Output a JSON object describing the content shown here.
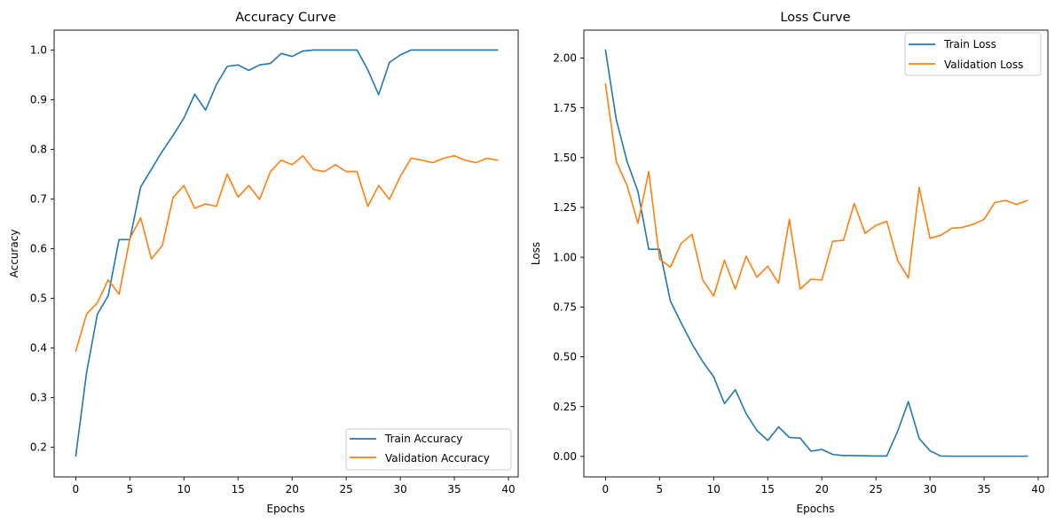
{
  "chart_data": [
    {
      "type": "line",
      "title": "Accuracy Curve",
      "xlabel": "Epochs",
      "ylabel": "Accuracy",
      "xlim": [
        -2,
        40.9
      ],
      "ylim": [
        0.14,
        1.04
      ],
      "xticks": [
        0,
        5,
        10,
        15,
        20,
        25,
        30,
        35,
        40
      ],
      "yticks": [
        0.2,
        0.3,
        0.4,
        0.5,
        0.6,
        0.7,
        0.8,
        0.9,
        1.0
      ],
      "xtick_labels": [
        "0",
        "5",
        "10",
        "15",
        "20",
        "25",
        "30",
        "35",
        "40"
      ],
      "ytick_labels": [
        "0.2",
        "0.3",
        "0.4",
        "0.5",
        "0.6",
        "0.7",
        "0.8",
        "0.9",
        "1.0"
      ],
      "grid": false,
      "legend_position": "bottom-right",
      "x": [
        0,
        1,
        2,
        3,
        4,
        5,
        6,
        7,
        8,
        9,
        10,
        11,
        12,
        13,
        14,
        15,
        16,
        17,
        18,
        19,
        20,
        21,
        22,
        23,
        24,
        25,
        26,
        27,
        28,
        29,
        30,
        31,
        32,
        33,
        34,
        35,
        36,
        37,
        38,
        39
      ],
      "series": [
        {
          "name": "Train Accuracy",
          "color": "#1f77b4",
          "values": [
            0.182,
            0.35,
            0.468,
            0.505,
            0.618,
            0.618,
            0.724,
            0.76,
            0.796,
            0.828,
            0.863,
            0.911,
            0.879,
            0.93,
            0.967,
            0.97,
            0.959,
            0.97,
            0.973,
            0.993,
            0.987,
            0.998,
            1.0,
            1.0,
            1.0,
            1.0,
            1.0,
            0.96,
            0.91,
            0.975,
            0.99,
            1.0,
            1.0,
            1.0,
            1.0,
            1.0,
            1.0,
            1.0,
            1.0,
            1.0
          ]
        },
        {
          "name": "Validation Accuracy",
          "color": "#ff7f0e",
          "values": [
            0.393,
            0.468,
            0.491,
            0.537,
            0.508,
            0.62,
            0.662,
            0.579,
            0.606,
            0.703,
            0.727,
            0.681,
            0.69,
            0.685,
            0.75,
            0.704,
            0.727,
            0.699,
            0.755,
            0.778,
            0.769,
            0.787,
            0.759,
            0.755,
            0.769,
            0.755,
            0.755,
            0.685,
            0.727,
            0.699,
            0.745,
            0.782,
            0.778,
            0.773,
            0.782,
            0.787,
            0.778,
            0.773,
            0.782,
            0.778
          ]
        }
      ]
    },
    {
      "type": "line",
      "title": "Loss Curve",
      "xlabel": "Epochs",
      "ylabel": "Loss",
      "xlim": [
        -2,
        40.9
      ],
      "ylim": [
        -0.103,
        2.14
      ],
      "xticks": [
        0,
        5,
        10,
        15,
        20,
        25,
        30,
        35,
        40
      ],
      "yticks": [
        0.0,
        0.25,
        0.5,
        0.75,
        1.0,
        1.25,
        1.5,
        1.75,
        2.0
      ],
      "xtick_labels": [
        "0",
        "5",
        "10",
        "15",
        "20",
        "25",
        "30",
        "35",
        "40"
      ],
      "ytick_labels": [
        "0.00",
        "0.25",
        "0.50",
        "0.75",
        "1.00",
        "1.25",
        "1.50",
        "1.75",
        "2.00"
      ],
      "grid": false,
      "legend_position": "top-right",
      "x": [
        0,
        1,
        2,
        3,
        4,
        5,
        6,
        7,
        8,
        9,
        10,
        11,
        12,
        13,
        14,
        15,
        16,
        17,
        18,
        19,
        20,
        21,
        22,
        23,
        24,
        25,
        26,
        27,
        28,
        29,
        30,
        31,
        32,
        33,
        34,
        35,
        36,
        37,
        38,
        39
      ],
      "series": [
        {
          "name": "Train Loss",
          "color": "#1f77b4",
          "values": [
            2.04,
            1.69,
            1.48,
            1.33,
            1.04,
            1.04,
            0.78,
            0.67,
            0.565,
            0.475,
            0.4,
            0.265,
            0.335,
            0.215,
            0.13,
            0.08,
            0.148,
            0.095,
            0.092,
            0.026,
            0.035,
            0.01,
            0.004,
            0.004,
            0.003,
            0.002,
            0.002,
            0.125,
            0.275,
            0.09,
            0.028,
            0.002,
            0.001,
            0.001,
            0.001,
            0.001,
            0.001,
            0.001,
            0.001,
            0.001
          ]
        },
        {
          "name": "Validation Loss",
          "color": "#ff7f0e",
          "values": [
            1.87,
            1.48,
            1.36,
            1.17,
            1.43,
            0.99,
            0.95,
            1.07,
            1.115,
            0.885,
            0.805,
            0.985,
            0.84,
            1.005,
            0.9,
            0.955,
            0.87,
            1.19,
            0.84,
            0.89,
            0.885,
            1.08,
            1.085,
            1.27,
            1.12,
            1.16,
            1.18,
            0.985,
            0.895,
            1.35,
            1.095,
            1.11,
            1.145,
            1.15,
            1.165,
            1.19,
            1.275,
            1.285,
            1.265,
            1.285
          ]
        }
      ]
    }
  ]
}
